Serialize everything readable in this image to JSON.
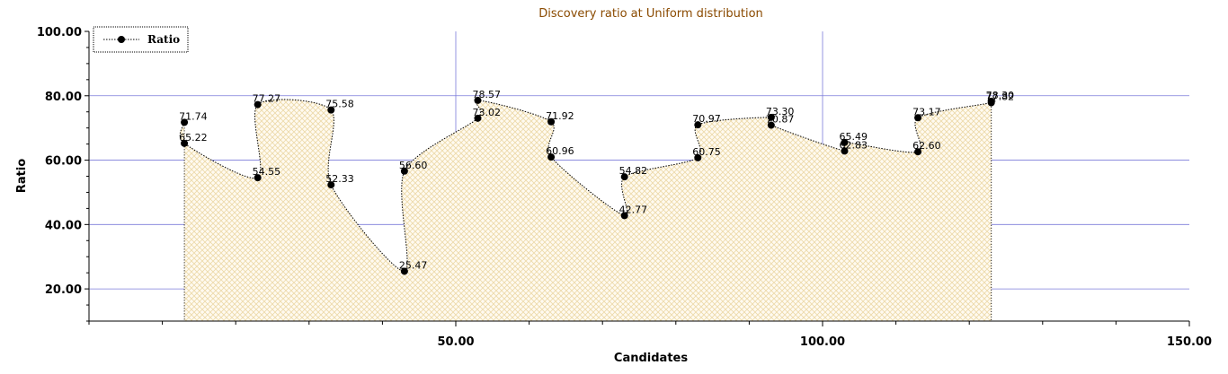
{
  "chart_data": {
    "type": "line",
    "title": "Discovery ratio at Uniform distribution",
    "xlabel": "Candidates",
    "ylabel": "Ratio",
    "xlim": [
      0,
      150
    ],
    "ylim": [
      10,
      100
    ],
    "x_ticks": [
      50,
      100,
      150
    ],
    "x_tick_labels": [
      "50.00",
      "100.00",
      "150.00"
    ],
    "y_ticks": [
      20,
      40,
      60,
      80,
      100
    ],
    "y_tick_labels": [
      "20.00",
      "40.00",
      "60.00",
      "80.00",
      "100.00"
    ],
    "grid": true,
    "legend_position": "top-left",
    "series": [
      {
        "name": "Ratio",
        "color": "#000000",
        "fill_color": "#f5deb3",
        "points": [
          {
            "x": 13,
            "y": 71.74,
            "label": "71.74"
          },
          {
            "x": 13,
            "y": 65.22,
            "label": "65.22"
          },
          {
            "x": 23,
            "y": 54.55,
            "label": "54.55"
          },
          {
            "x": 23,
            "y": 77.27,
            "label": "77.27"
          },
          {
            "x": 33,
            "y": 75.58,
            "label": "75.58"
          },
          {
            "x": 33,
            "y": 52.33,
            "label": "52.33"
          },
          {
            "x": 43,
            "y": 25.47,
            "label": "25.47"
          },
          {
            "x": 43,
            "y": 56.6,
            "label": "56.60"
          },
          {
            "x": 53,
            "y": 73.02,
            "label": "73.02"
          },
          {
            "x": 53,
            "y": 78.57,
            "label": "78.57"
          },
          {
            "x": 63,
            "y": 71.92,
            "label": "71.92"
          },
          {
            "x": 63,
            "y": 60.96,
            "label": "60.96"
          },
          {
            "x": 73,
            "y": 42.77,
            "label": "42.77"
          },
          {
            "x": 73,
            "y": 54.82,
            "label": "54.82"
          },
          {
            "x": 83,
            "y": 60.75,
            "label": "60.75"
          },
          {
            "x": 83,
            "y": 70.97,
            "label": "70.97"
          },
          {
            "x": 93,
            "y": 73.3,
            "label": "73.30"
          },
          {
            "x": 93,
            "y": 70.87,
            "label": "70.87"
          },
          {
            "x": 103,
            "y": 62.83,
            "label": "62.83"
          },
          {
            "x": 103,
            "y": 65.49,
            "label": "65.49"
          },
          {
            "x": 113,
            "y": 62.6,
            "label": "62.60"
          },
          {
            "x": 113,
            "y": 73.17,
            "label": "73.17"
          },
          {
            "x": 123,
            "y": 77.82,
            "label": "77.82"
          },
          {
            "x": 123,
            "y": 78.3,
            "label": "78.30"
          }
        ]
      }
    ]
  }
}
